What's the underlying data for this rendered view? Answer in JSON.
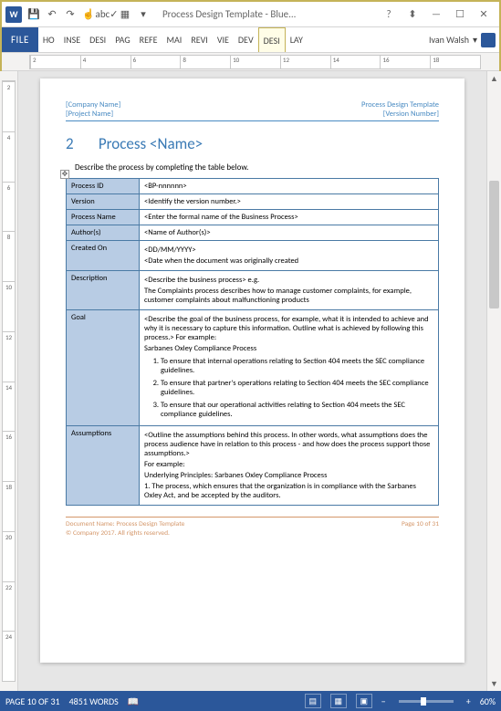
{
  "window": {
    "app_glyph": "W",
    "title": "Process Design Template - Blue...",
    "user_name": "Ivan Walsh"
  },
  "qat": {
    "save": "💾",
    "undo": "↶",
    "redo": "↷",
    "touch": "☝",
    "spell": "abc✓",
    "dropdown": "▾",
    "new": "▦"
  },
  "win_buttons": {
    "help": "?",
    "opts": "⬍",
    "min": "—",
    "max": "☐",
    "close": "✕"
  },
  "ribbon": {
    "file": "FILE",
    "tabs": [
      "HO",
      "INSE",
      "DESI",
      "PAG",
      "REFE",
      "MAI",
      "REVI",
      "VIE",
      "DEV",
      "DESI",
      "LAY"
    ],
    "active_index": 9
  },
  "ruler_h": [
    2,
    4,
    6,
    8,
    10,
    12,
    14,
    16,
    18
  ],
  "ruler_v": [
    2,
    4,
    6,
    8,
    10,
    12,
    14,
    16,
    18,
    20,
    22,
    24
  ],
  "doc": {
    "header": {
      "company": "[Company Name]",
      "project": "[Project Name]",
      "template": "Process Design Template",
      "version": "[Version Number]"
    },
    "section_num": "2",
    "section_title": "Process <Name>",
    "intro": "Describe the process by completing the table below.",
    "move_glyph": "✥",
    "rows": {
      "process_id": {
        "label": "Process ID",
        "value": "<BP-nnnnnn>"
      },
      "version": {
        "label": "Version",
        "value": "<Identify the version number.>"
      },
      "process_name": {
        "label": "Process Name",
        "value": "<Enter the formal name of the Business Process>"
      },
      "authors": {
        "label": "Author(s)",
        "value": "<Name of Author(s)>"
      },
      "created_on": {
        "label": "Created On",
        "line1": "<DD/MM/YYYY>",
        "line2": "<Date when the document was originally created"
      },
      "description": {
        "label": "Description",
        "line1": "<Describe the business process> e.g.",
        "line2": "The Complaints process describes how to manage customer complaints, for example, customer complaints about malfunctioning products"
      },
      "goal": {
        "label": "Goal",
        "intro": "<Describe the goal of the business process, for example, what it is intended to achieve and why it is necessary to capture this information. Outline what is achieved by following this process.> For example:",
        "subtitle": "Sarbanes Oxley Compliance Process",
        "items": [
          "To ensure that internal operations relating to Section 404 meets the SEC compliance guidelines.",
          "To ensure that partner's operations relating to Section 404 meets the SEC compliance guidelines.",
          "To ensure that our operational activities relating to Section 404 meets the SEC compliance guidelines."
        ]
      },
      "assumptions": {
        "label": "Assumptions",
        "line1": "<Outline the assumptions behind this process. In other words, what assumptions does the process audience have in relation to this process - and how does the process support those assumptions.>",
        "line2": "For example:",
        "line3": "Underlying Principles: Sarbanes Oxley Compliance Process",
        "line4": "1. The process, which ensures that the organization is in compliance with the Sarbanes Oxley Act, and be accepted by the auditors."
      }
    },
    "footer": {
      "docname": "Document Name: Process Design Template",
      "copyright": "© Company 2017. All rights reserved.",
      "page": "Page 10 of 31"
    }
  },
  "status": {
    "page": "PAGE 10 OF 31",
    "words": "4851 WORDS",
    "proof_icon": "📖",
    "view_read": "▤",
    "view_print": "▦",
    "view_web": "▣",
    "zoom_minus": "−",
    "zoom_plus": "+",
    "zoom": "60%"
  }
}
